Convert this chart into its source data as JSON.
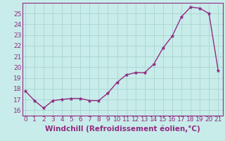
{
  "x": [
    0,
    1,
    2,
    3,
    4,
    5,
    6,
    7,
    8,
    9,
    10,
    11,
    12,
    13,
    14,
    15,
    16,
    17,
    18,
    19,
    20,
    21
  ],
  "y": [
    17.8,
    16.9,
    16.2,
    16.9,
    17.0,
    17.1,
    17.1,
    16.9,
    16.9,
    17.6,
    18.6,
    19.3,
    19.5,
    19.5,
    20.3,
    21.8,
    22.9,
    24.7,
    25.6,
    25.5,
    25.0,
    19.7
  ],
  "line_color": "#912b82",
  "marker": "*",
  "marker_size": 3.5,
  "bg_color": "#c8ecea",
  "grid_color": "#acd8d4",
  "tick_color": "#912b82",
  "spine_color": "#912b82",
  "xlabel": "Windchill (Refroidissement éolien,°C)",
  "xlabel_fontsize": 7.5,
  "ylim": [
    15.5,
    26.0
  ],
  "yticks": [
    16,
    17,
    18,
    19,
    20,
    21,
    22,
    23,
    24,
    25
  ],
  "xticks": [
    0,
    1,
    2,
    3,
    4,
    5,
    6,
    7,
    8,
    9,
    10,
    11,
    12,
    13,
    14,
    15,
    16,
    17,
    18,
    19,
    20,
    21
  ],
  "xlim": [
    -0.3,
    21.5
  ],
  "tick_fontsize": 6.5,
  "linewidth": 1.0
}
